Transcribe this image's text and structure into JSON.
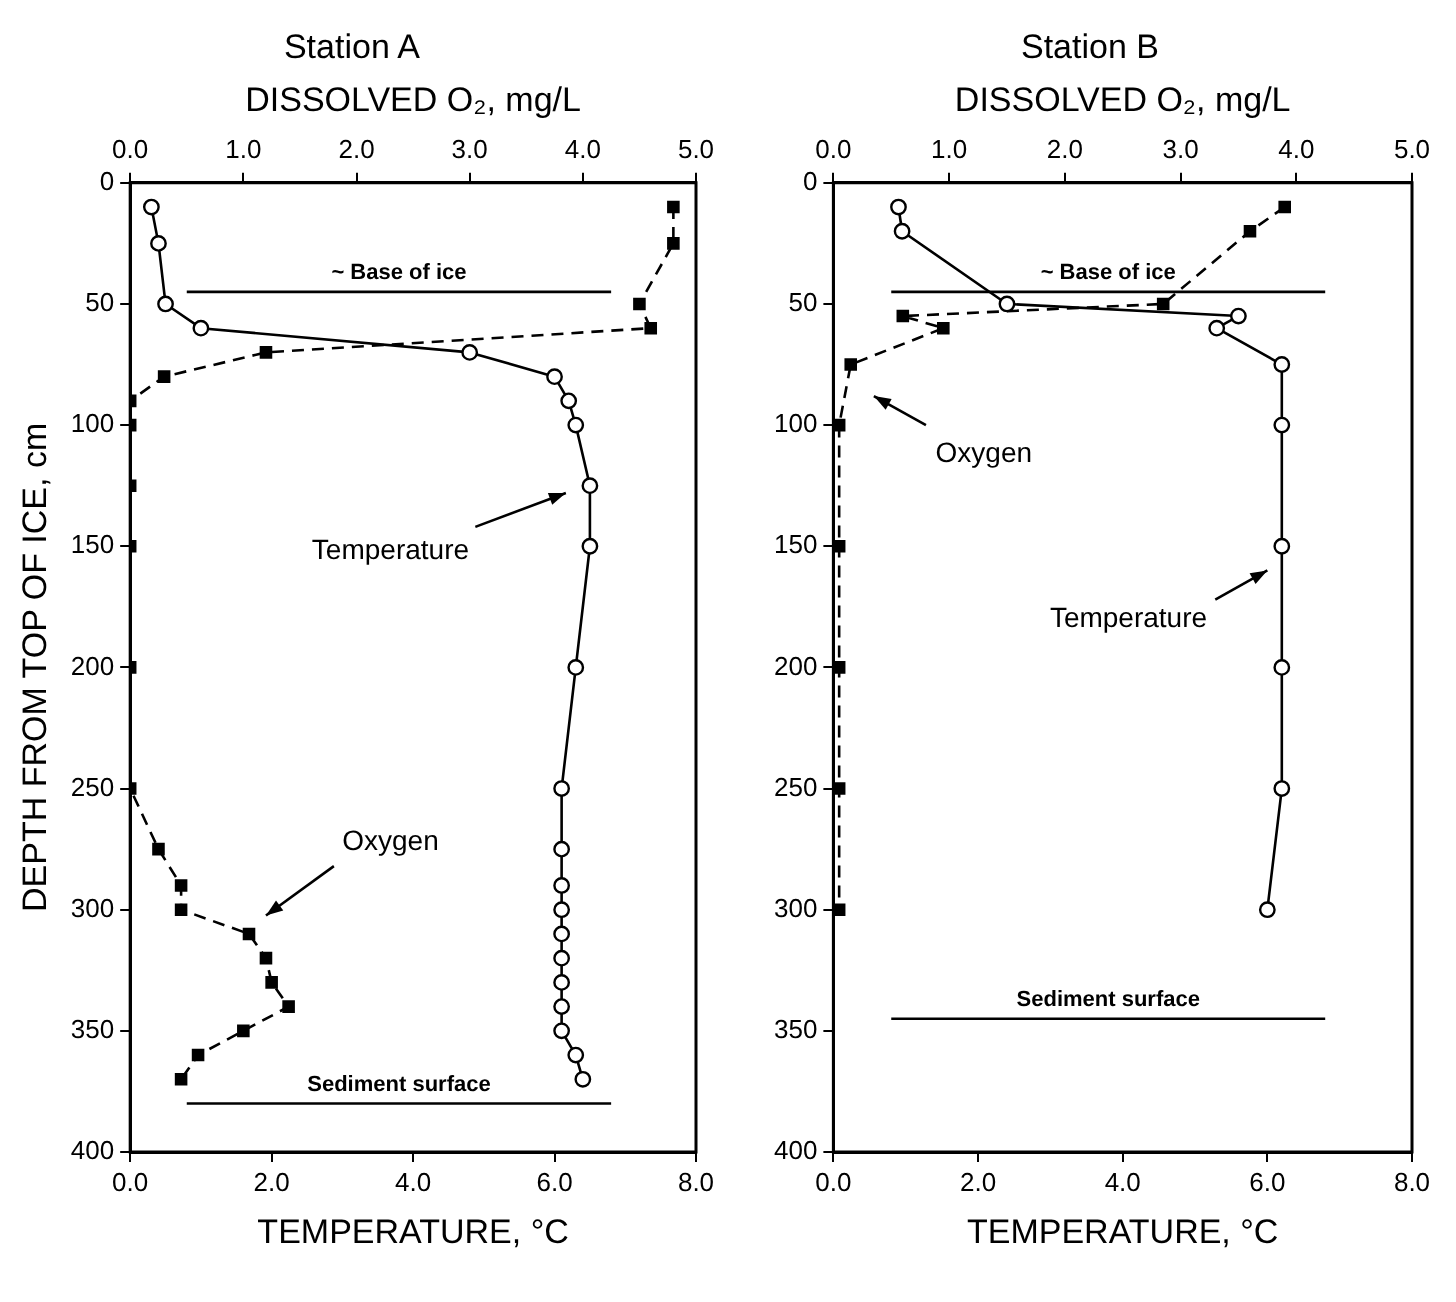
{
  "chart_data": [
    {
      "type": "line",
      "title": "Station A",
      "x2label": "DISSOLVED O₂, mg/L",
      "xlabel": "TEMPERATURE, °C",
      "ylabel": "DEPTH FROM TOP OF ICE, cm",
      "xlim": [
        0,
        8
      ],
      "xticks": [
        {
          "value": 0,
          "label": "0.0"
        },
        {
          "value": 2,
          "label": "2.0"
        },
        {
          "value": 4,
          "label": "4.0"
        },
        {
          "value": 6,
          "label": "6.0"
        },
        {
          "value": 8,
          "label": "8.0"
        }
      ],
      "x2lim": [
        0,
        5
      ],
      "x2ticks": [
        {
          "value": 0,
          "label": "0.0"
        },
        {
          "value": 1,
          "label": "1.0"
        },
        {
          "value": 2,
          "label": "2.0"
        },
        {
          "value": 3,
          "label": "3.0"
        },
        {
          "value": 4,
          "label": "4.0"
        },
        {
          "value": 5,
          "label": "5.0"
        }
      ],
      "ylim": [
        400,
        0
      ],
      "yticks": [
        0,
        50,
        100,
        150,
        200,
        250,
        300,
        350,
        400
      ],
      "grid": false,
      "legend": false,
      "series": [
        {
          "color": "#000000",
          "marker": "circle",
          "line_style": "solid",
          "x": [
            0.3,
            0.4,
            0.5,
            1.0,
            4.8,
            6.0,
            6.2,
            6.3,
            6.5,
            6.5,
            6.3,
            6.1,
            6.1,
            6.1,
            6.1,
            6.1,
            6.1,
            6.1,
            6.1,
            6.1,
            6.3,
            6.4
          ],
          "values": [
            10,
            25,
            50,
            60,
            70,
            80,
            90,
            100,
            125,
            150,
            200,
            250,
            275,
            290,
            300,
            310,
            320,
            330,
            340,
            350,
            360,
            370
          ]
        },
        {
          "color": "#000000",
          "marker": "square",
          "line_style": "dashed",
          "axis": "x2",
          "x": [
            4.8,
            4.8,
            4.5,
            4.6,
            1.2,
            0.3,
            0.0,
            0.0,
            0.0,
            0.0,
            0.0,
            0.0,
            0.25,
            0.45,
            0.45,
            1.05,
            1.2,
            1.25,
            1.4,
            1.0,
            0.6,
            0.45
          ],
          "values": [
            10,
            25,
            50,
            60,
            70,
            80,
            90,
            100,
            125,
            150,
            200,
            250,
            275,
            290,
            300,
            310,
            320,
            330,
            340,
            350,
            360,
            370
          ]
        }
      ],
      "ref_lines": [
        {
          "axis": "y",
          "value": 45,
          "label": "~ Base of ice"
        },
        {
          "axis": "y",
          "value": 380,
          "label": "Sediment surface"
        }
      ],
      "annotations": [
        "Temperature",
        "Oxygen"
      ]
    },
    {
      "type": "line",
      "title": "Station B",
      "x2label": "DISSOLVED O₂, mg/L",
      "xlabel": "TEMPERATURE, °C",
      "xlim": [
        0,
        8
      ],
      "xticks": [
        {
          "value": 0,
          "label": "0.0"
        },
        {
          "value": 2,
          "label": "2.0"
        },
        {
          "value": 4,
          "label": "4.0"
        },
        {
          "value": 6,
          "label": "6.0"
        },
        {
          "value": 8,
          "label": "8.0"
        }
      ],
      "x2lim": [
        0,
        5
      ],
      "x2ticks": [
        {
          "value": 0,
          "label": "0.0"
        },
        {
          "value": 1,
          "label": "1.0"
        },
        {
          "value": 2,
          "label": "2.0"
        },
        {
          "value": 3,
          "label": "3.0"
        },
        {
          "value": 4,
          "label": "4.0"
        },
        {
          "value": 5,
          "label": "5.0"
        }
      ],
      "ylim": [
        400,
        0
      ],
      "yticks": [
        0,
        50,
        100,
        150,
        200,
        250,
        300,
        350,
        400
      ],
      "grid": false,
      "legend": false,
      "series": [
        {
          "color": "#000000",
          "marker": "circle",
          "line_style": "solid",
          "x": [
            0.9,
            0.95,
            2.4,
            5.6,
            5.3,
            6.2,
            6.2,
            6.2,
            6.2,
            6.2,
            6.0
          ],
          "values": [
            10,
            20,
            50,
            55,
            60,
            75,
            100,
            150,
            200,
            250,
            300
          ]
        },
        {
          "color": "#000000",
          "marker": "square",
          "line_style": "dashed",
          "axis": "x2",
          "x": [
            3.9,
            3.6,
            2.85,
            0.6,
            0.95,
            0.15,
            0.05,
            0.05,
            0.05,
            0.05,
            0.05
          ],
          "values": [
            10,
            20,
            50,
            55,
            60,
            75,
            100,
            150,
            200,
            250,
            300
          ]
        }
      ],
      "ref_lines": [
        {
          "axis": "y",
          "value": 45,
          "label": "~ Base of ice"
        },
        {
          "axis": "y",
          "value": 345,
          "label": "Sediment surface"
        }
      ],
      "annotations": [
        "Oxygen",
        "Temperature"
      ]
    }
  ]
}
